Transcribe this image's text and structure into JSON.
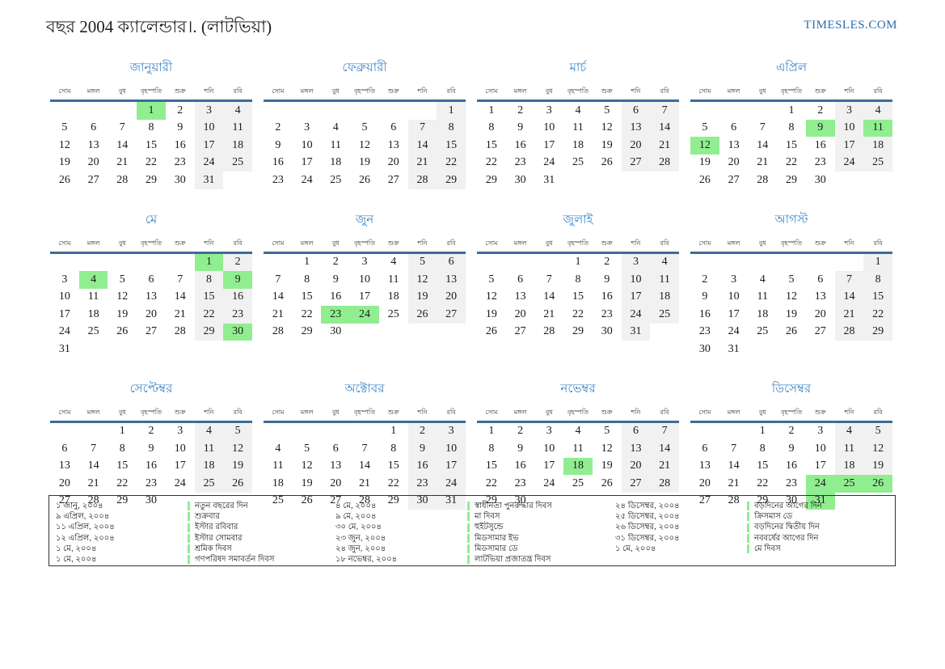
{
  "page_title": "বছর 2004 ক্যালেন্ডার।. (লাটভিয়া)",
  "brand": "TIMESLES.COM",
  "colors": {
    "month_title_blue": "#3d85c6",
    "brand_blue": "#2b6cb0",
    "header_line_blue": "#3e6b99",
    "holiday_green": "#90ee90",
    "weekend_gray": "#f1f1f1"
  },
  "calendar": {
    "weekday_headers": [
      "সোম",
      "মঙ্গল",
      "বুধ",
      "বৃহস্পতি",
      "শুক্র",
      "শনি",
      "রবি"
    ],
    "months": [
      {
        "id": "january",
        "name": "জানুয়ারী",
        "holidays": [
          1
        ],
        "weeks": [
          [
            "",
            "",
            "",
            1,
            2,
            3,
            4
          ],
          [
            5,
            6,
            7,
            8,
            9,
            10,
            11
          ],
          [
            12,
            13,
            14,
            15,
            16,
            17,
            18
          ],
          [
            19,
            20,
            21,
            22,
            23,
            24,
            25
          ],
          [
            26,
            27,
            28,
            29,
            30,
            31,
            ""
          ]
        ]
      },
      {
        "id": "february",
        "name": "ফেব্রুয়ারী",
        "holidays": [],
        "weeks": [
          [
            "",
            "",
            "",
            "",
            "",
            "",
            1
          ],
          [
            2,
            3,
            4,
            5,
            6,
            7,
            8
          ],
          [
            9,
            10,
            11,
            12,
            13,
            14,
            15
          ],
          [
            16,
            17,
            18,
            19,
            20,
            21,
            22
          ],
          [
            23,
            24,
            25,
            26,
            27,
            28,
            29
          ]
        ]
      },
      {
        "id": "march",
        "name": "মার্চ",
        "holidays": [],
        "weeks": [
          [
            1,
            2,
            3,
            4,
            5,
            6,
            7
          ],
          [
            8,
            9,
            10,
            11,
            12,
            13,
            14
          ],
          [
            15,
            16,
            17,
            18,
            19,
            20,
            21
          ],
          [
            22,
            23,
            24,
            25,
            26,
            27,
            28
          ],
          [
            29,
            30,
            31,
            "",
            "",
            "",
            ""
          ]
        ]
      },
      {
        "id": "april",
        "name": "এপ্রিল",
        "holidays": [
          9,
          11,
          12
        ],
        "weeks": [
          [
            "",
            "",
            "",
            1,
            2,
            3,
            4
          ],
          [
            5,
            6,
            7,
            8,
            9,
            10,
            11
          ],
          [
            12,
            13,
            14,
            15,
            16,
            17,
            18
          ],
          [
            19,
            20,
            21,
            22,
            23,
            24,
            25
          ],
          [
            26,
            27,
            28,
            29,
            30,
            "",
            ""
          ]
        ]
      },
      {
        "id": "may",
        "name": "মে",
        "holidays": [
          1,
          4,
          9,
          30
        ],
        "weeks": [
          [
            "",
            "",
            "",
            "",
            "",
            1,
            2
          ],
          [
            3,
            4,
            5,
            6,
            7,
            8,
            9
          ],
          [
            10,
            11,
            12,
            13,
            14,
            15,
            16
          ],
          [
            17,
            18,
            19,
            20,
            21,
            22,
            23
          ],
          [
            24,
            25,
            26,
            27,
            28,
            29,
            30
          ],
          [
            31,
            "",
            "",
            "",
            "",
            "",
            ""
          ]
        ]
      },
      {
        "id": "june",
        "name": "জুন",
        "holidays": [
          23,
          24
        ],
        "weeks": [
          [
            "",
            1,
            2,
            3,
            4,
            5,
            6
          ],
          [
            7,
            8,
            9,
            10,
            11,
            12,
            13
          ],
          [
            14,
            15,
            16,
            17,
            18,
            19,
            20
          ],
          [
            21,
            22,
            23,
            24,
            25,
            26,
            27
          ],
          [
            28,
            29,
            30,
            "",
            "",
            "",
            ""
          ]
        ]
      },
      {
        "id": "july",
        "name": "জুলাই",
        "holidays": [],
        "weeks": [
          [
            "",
            "",
            "",
            1,
            2,
            3,
            4
          ],
          [
            5,
            6,
            7,
            8,
            9,
            10,
            11
          ],
          [
            12,
            13,
            14,
            15,
            16,
            17,
            18
          ],
          [
            19,
            20,
            21,
            22,
            23,
            24,
            25
          ],
          [
            26,
            27,
            28,
            29,
            30,
            31,
            ""
          ]
        ]
      },
      {
        "id": "august",
        "name": "আগস্ট",
        "holidays": [],
        "weeks": [
          [
            "",
            "",
            "",
            "",
            "",
            "",
            1
          ],
          [
            2,
            3,
            4,
            5,
            6,
            7,
            8
          ],
          [
            9,
            10,
            11,
            12,
            13,
            14,
            15
          ],
          [
            16,
            17,
            18,
            19,
            20,
            21,
            22
          ],
          [
            23,
            24,
            25,
            26,
            27,
            28,
            29
          ],
          [
            30,
            31,
            "",
            "",
            "",
            "",
            ""
          ]
        ]
      },
      {
        "id": "september",
        "name": "সেপ্টেম্বর",
        "holidays": [],
        "weeks": [
          [
            "",
            "",
            1,
            2,
            3,
            4,
            5
          ],
          [
            6,
            7,
            8,
            9,
            10,
            11,
            12
          ],
          [
            13,
            14,
            15,
            16,
            17,
            18,
            19
          ],
          [
            20,
            21,
            22,
            23,
            24,
            25,
            26
          ],
          [
            27,
            28,
            29,
            30,
            "",
            "",
            ""
          ]
        ]
      },
      {
        "id": "october",
        "name": "অক্টোবর",
        "holidays": [],
        "weeks": [
          [
            "",
            "",
            "",
            "",
            1,
            2,
            3
          ],
          [
            4,
            5,
            6,
            7,
            8,
            9,
            10
          ],
          [
            11,
            12,
            13,
            14,
            15,
            16,
            17
          ],
          [
            18,
            19,
            20,
            21,
            22,
            23,
            24
          ],
          [
            25,
            26,
            27,
            28,
            29,
            30,
            31
          ]
        ]
      },
      {
        "id": "november",
        "name": "নভেম্বর",
        "holidays": [
          18
        ],
        "weeks": [
          [
            1,
            2,
            3,
            4,
            5,
            6,
            7
          ],
          [
            8,
            9,
            10,
            11,
            12,
            13,
            14
          ],
          [
            15,
            16,
            17,
            18,
            19,
            20,
            21
          ],
          [
            22,
            23,
            24,
            25,
            26,
            27,
            28
          ],
          [
            29,
            30,
            "",
            "",
            "",
            "",
            ""
          ]
        ]
      },
      {
        "id": "december",
        "name": "ডিসেম্বর",
        "holidays": [
          24,
          25,
          26,
          31
        ],
        "weeks": [
          [
            "",
            "",
            1,
            2,
            3,
            4,
            5
          ],
          [
            6,
            7,
            8,
            9,
            10,
            11,
            12
          ],
          [
            13,
            14,
            15,
            16,
            17,
            18,
            19
          ],
          [
            20,
            21,
            22,
            23,
            24,
            25,
            26
          ],
          [
            27,
            28,
            29,
            30,
            31,
            "",
            ""
          ]
        ]
      }
    ]
  },
  "legend": {
    "groups": [
      [
        {
          "date": "১ জানু, ২০০৪",
          "name": "নতুন বছরের দিন"
        },
        {
          "date": "৯ এপ্রিল, ২০০৪",
          "name": "শুক্রবার"
        },
        {
          "date": "১১ এপ্রিল, ২০০৪",
          "name": "ইস্টার রবিবার"
        },
        {
          "date": "১২ এপ্রিল, ২০০৪",
          "name": "ইস্টার সোমবার"
        },
        {
          "date": "১ মে, ২০০৪",
          "name": "শ্রমিক দিবস"
        },
        {
          "date": "১ মে, ২০০৪",
          "name": "গণপরিষদ সমাবর্তন দিবস"
        }
      ],
      [
        {
          "date": "৪ মে, ২০০৪",
          "name": "স্বাধীনতা পুনরুদ্ধার দিবস"
        },
        {
          "date": "৯ মে, ২০০৪",
          "name": "মা দিবস"
        },
        {
          "date": "৩০ মে, ২০০৪",
          "name": "হুইটসুন্ডে"
        },
        {
          "date": "২৩ জুন, ২০০৪",
          "name": "মিডসামার ইভ"
        },
        {
          "date": "২৪ জুন, ২০০৪",
          "name": "মিডসামার ডে"
        },
        {
          "date": "১৮ নভেম্বর, ২০০৪",
          "name": "লাটভিয়া প্রজাতন্ত্র দিবস"
        }
      ],
      [
        {
          "date": "২৪ ডিসেম্বর, ২০০৪",
          "name": "বড়দিনের আগের দিন"
        },
        {
          "date": "২৫ ডিসেম্বর, ২০০৪",
          "name": "ক্রিসমাস ডে"
        },
        {
          "date": "২৬ ডিসেম্বর, ২০০৪",
          "name": "বড়দিনের দ্বিতীয় দিন"
        },
        {
          "date": "৩১ ডিসেম্বর, ২০০৪",
          "name": "নববর্ষের আগের দিন"
        },
        {
          "date": "১ মে, ২০০৪",
          "name": "মে দিবস"
        }
      ]
    ]
  }
}
